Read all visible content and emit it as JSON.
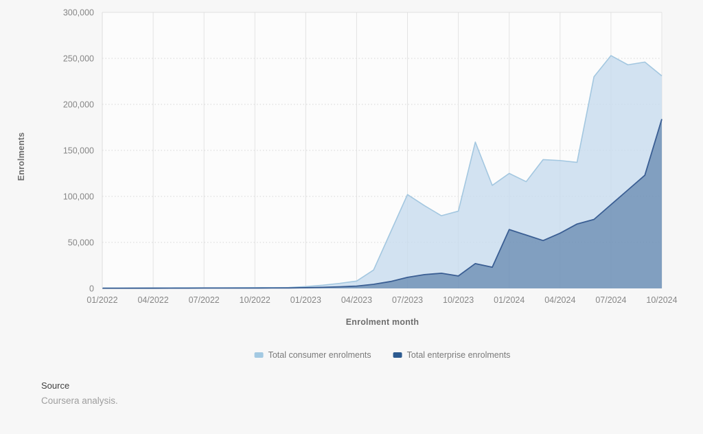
{
  "axes": {
    "y_title": "Enrolments",
    "x_title": "Enrolment month"
  },
  "legend": {
    "items": [
      {
        "label": "Total consumer enrolments",
        "color": "#a3c9e2"
      },
      {
        "label": "Total enterprise enrolments",
        "color": "#2d5b90"
      }
    ]
  },
  "source": {
    "heading": "Source",
    "text": "Coursera analysis."
  },
  "chart_data": {
    "type": "area",
    "title": "",
    "xlabel": "Enrolment month",
    "ylabel": "Enrolments",
    "ylim": [
      0,
      300000
    ],
    "grid": {
      "horizontal": "dotted-every-50000",
      "vertical": "solid-every-quarter"
    },
    "legend_position": "bottom",
    "y_ticks": [
      0,
      50000,
      100000,
      150000,
      200000,
      250000,
      300000
    ],
    "y_tick_labels": [
      "0",
      "50,000",
      "100,000",
      "150,000",
      "200,000",
      "250,000",
      "300,000"
    ],
    "x_tick_labels": [
      "01/2022",
      "04/2022",
      "07/2022",
      "10/2022",
      "01/2023",
      "04/2023",
      "07/2023",
      "10/2023",
      "01/2024",
      "04/2024",
      "07/2024",
      "10/2024"
    ],
    "x": [
      "01/2022",
      "02/2022",
      "03/2022",
      "04/2022",
      "05/2022",
      "06/2022",
      "07/2022",
      "08/2022",
      "09/2022",
      "10/2022",
      "11/2022",
      "12/2022",
      "01/2023",
      "02/2023",
      "03/2023",
      "04/2023",
      "05/2023",
      "06/2023",
      "07/2023",
      "08/2023",
      "09/2023",
      "10/2023",
      "11/2023",
      "12/2023",
      "01/2024",
      "02/2024",
      "03/2024",
      "04/2024",
      "05/2024",
      "06/2024",
      "07/2024",
      "08/2024",
      "09/2024",
      "10/2024"
    ],
    "series": [
      {
        "name": "Total consumer enrolments",
        "fill": "rgba(199,219,237,0.8)",
        "stroke": "#a3c7e0",
        "stroke_width": 1.6,
        "values": [
          500,
          500,
          550,
          600,
          650,
          700,
          700,
          750,
          800,
          850,
          900,
          1000,
          2000,
          3500,
          5500,
          8000,
          20000,
          61000,
          102000,
          90000,
          79000,
          84000,
          159000,
          112000,
          125000,
          116000,
          140000,
          139000,
          137000,
          230000,
          253000,
          243000,
          246000,
          231000
        ]
      },
      {
        "name": "Total enterprise enrolments",
        "fill": "rgba(47,91,144,0.5)",
        "stroke": "#3a5e93",
        "stroke_width": 1.8,
        "values": [
          200,
          200,
          250,
          250,
          300,
          300,
          350,
          350,
          400,
          400,
          450,
          500,
          800,
          1200,
          1800,
          2500,
          4500,
          7500,
          12000,
          15000,
          16500,
          13500,
          27000,
          23000,
          64000,
          58000,
          52000,
          60000,
          70000,
          75000,
          91000,
          107000,
          123000,
          184000
        ]
      }
    ]
  }
}
